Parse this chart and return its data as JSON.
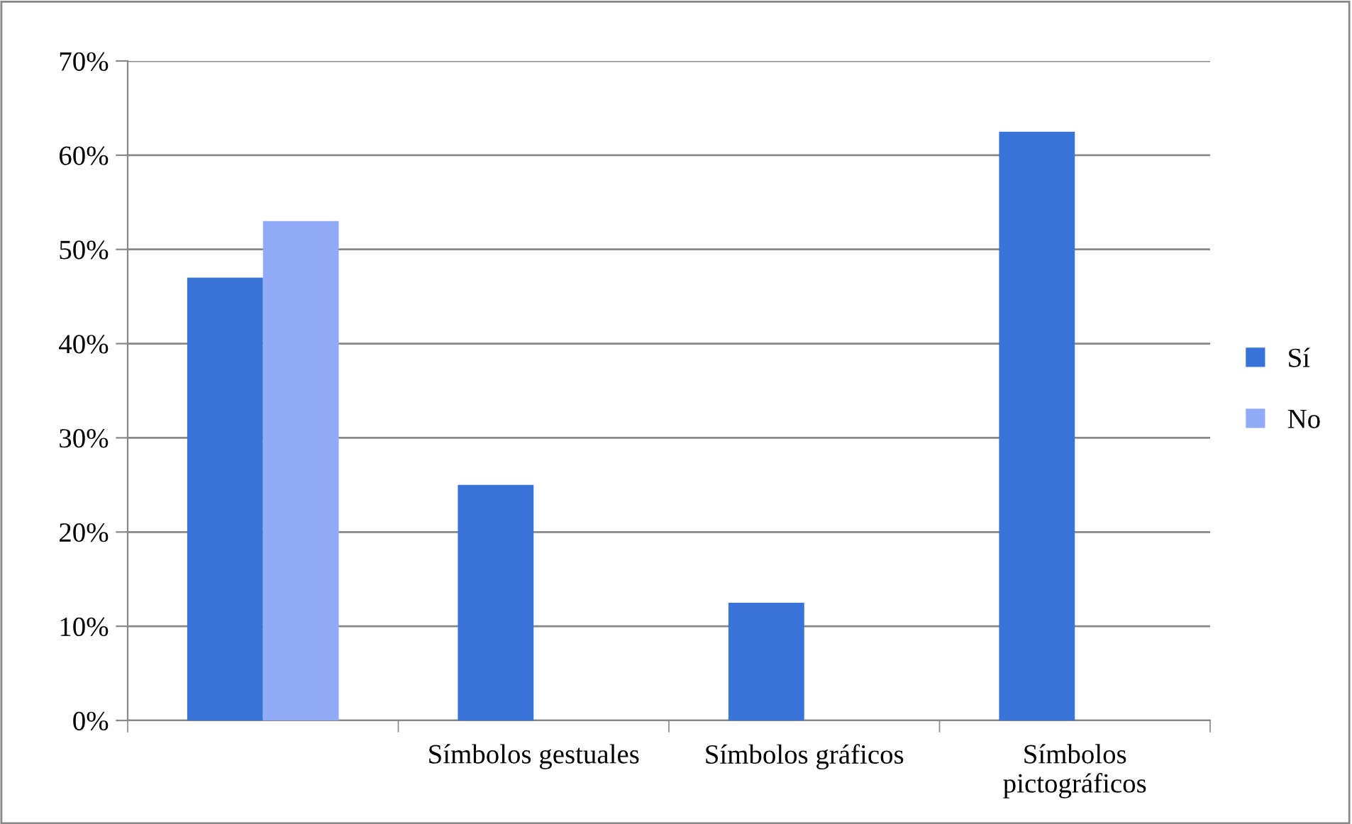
{
  "chart_data": {
    "type": "bar",
    "categories": [
      null,
      "Símbolos gestuales",
      "Símbolos gráficos",
      "Símbolos pictográficos"
    ],
    "series": [
      {
        "name": "Sí",
        "color": "#3874d8",
        "values": [
          47,
          25,
          12.5,
          62.5
        ]
      },
      {
        "name": "No",
        "color": "#92abf7",
        "values": [
          53,
          null,
          null,
          null
        ]
      }
    ],
    "ylim": [
      0,
      70
    ],
    "yticks": [
      {
        "value": 0,
        "label": "0%"
      },
      {
        "value": 10,
        "label": "10%"
      },
      {
        "value": 20,
        "label": "20%"
      },
      {
        "value": 30,
        "label": "30%"
      },
      {
        "value": 40,
        "label": "40%"
      },
      {
        "value": 50,
        "label": "50%"
      },
      {
        "value": 60,
        "label": "60%"
      },
      {
        "value": 70,
        "label": "70%"
      }
    ],
    "grid": "y",
    "legend": "right"
  }
}
